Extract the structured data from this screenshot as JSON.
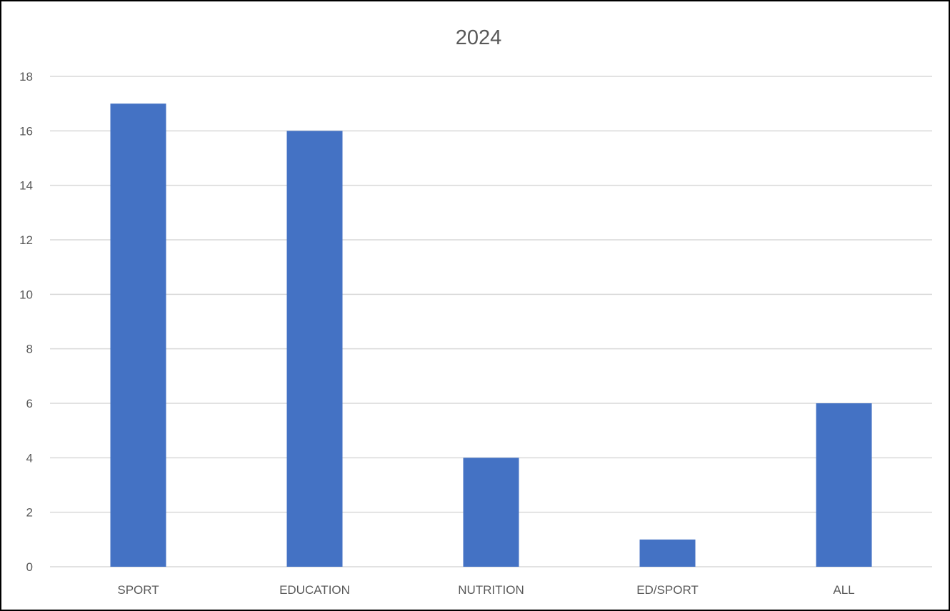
{
  "chart_data": {
    "type": "bar",
    "title": "2024",
    "xlabel": "",
    "ylabel": "",
    "categories": [
      "SPORT",
      "EDUCATION",
      "NUTRITION",
      "ED/SPORT",
      "ALL"
    ],
    "values": [
      17,
      16,
      4,
      1,
      6
    ],
    "ylim": [
      0,
      18
    ],
    "yticks": [
      0,
      2,
      4,
      6,
      8,
      10,
      12,
      14,
      16,
      18
    ],
    "grid": true,
    "legend": "none",
    "bar_color": "#4472C4",
    "grid_color": "#D9D9D9",
    "text_color": "#595959",
    "frame_color": "#000000"
  }
}
